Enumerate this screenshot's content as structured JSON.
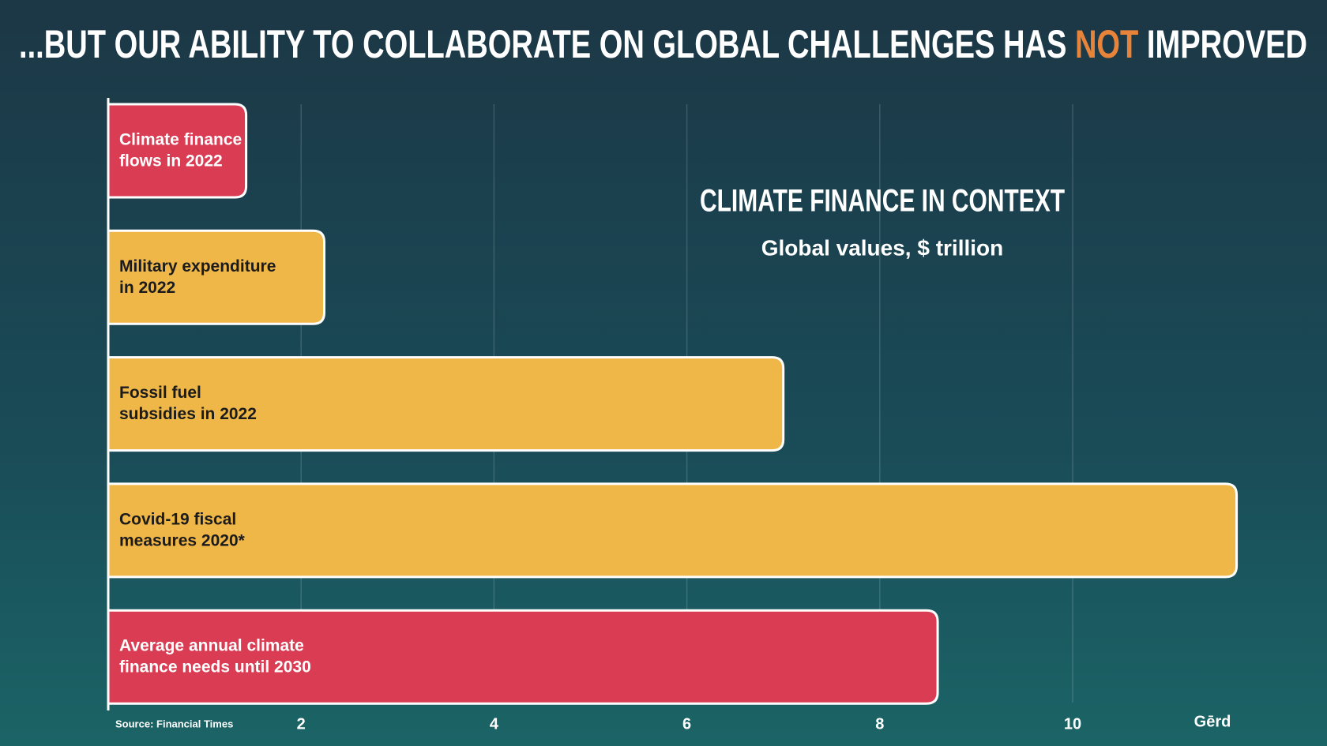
{
  "title": {
    "before": "...BUT OUR ABILITY TO COLLABORATE ON GLOBAL CHALLENGES HAS ",
    "highlight": "NOT",
    "after": " IMPROVED",
    "highlight_color": "#e8843a"
  },
  "chart_data": {
    "type": "bar",
    "orientation": "horizontal",
    "title": "CLIMATE FINANCE IN CONTEXT",
    "subtitle": "Global values, $ trillion",
    "categories": [
      [
        "Climate finance",
        "flows in 2022"
      ],
      [
        "Military expenditure",
        "in 2022"
      ],
      [
        "Fossil fuel",
        "subsidies in 2022"
      ],
      [
        "Covid-19 fiscal",
        "measures 2020*"
      ],
      [
        "Average annual climate",
        "finance needs until 2030"
      ]
    ],
    "values": [
      1.43,
      2.24,
      7,
      11.7,
      8.6
    ],
    "colors": [
      "#d93c53",
      "#efb648",
      "#efb648",
      "#efb648",
      "#d93c53"
    ],
    "label_colors": [
      "#ffffff",
      "#1b1b1b",
      "#1b1b1b",
      "#1b1b1b",
      "#ffffff"
    ],
    "xlim": [
      0,
      12
    ],
    "xticks": [
      2,
      4,
      6,
      8,
      10
    ],
    "grid": true
  },
  "source": "Source: Financial Times",
  "logo": "Gērd"
}
